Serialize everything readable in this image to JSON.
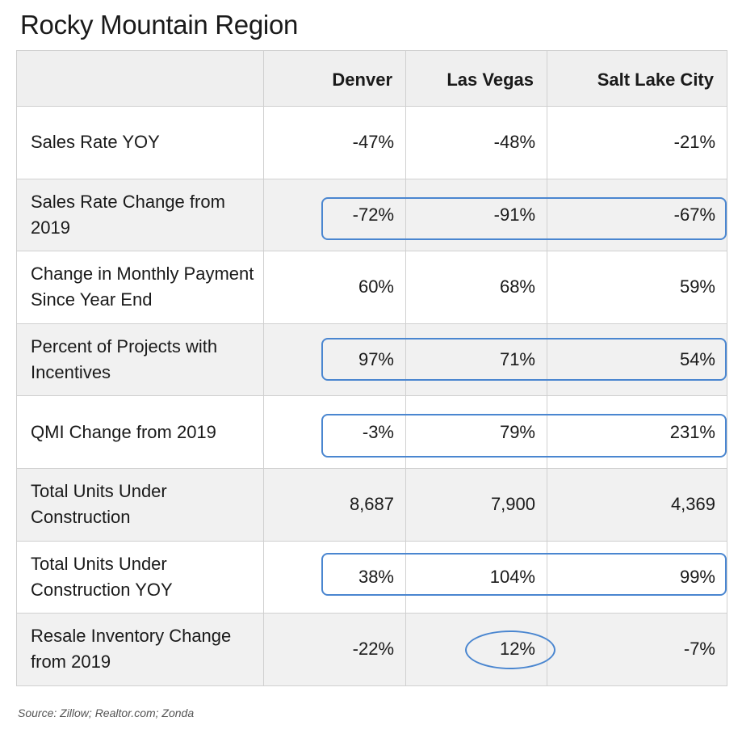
{
  "chart_data": {
    "type": "table",
    "title": "Rocky Mountain Region",
    "columns": [
      "",
      "Denver",
      "Las Vegas",
      "Salt Lake City"
    ],
    "rows": [
      {
        "label": "Sales Rate YOY",
        "values": [
          "-47%",
          "-48%",
          "-21%"
        ],
        "highlight": "none"
      },
      {
        "label": "Sales Rate Change from 2019",
        "values": [
          "-72%",
          "-91%",
          "-67%"
        ],
        "highlight": "row"
      },
      {
        "label": "Change in Monthly Payment Since Year End",
        "values": [
          "60%",
          "68%",
          "59%"
        ],
        "highlight": "none"
      },
      {
        "label": "Percent of Projects with Incentives",
        "values": [
          "97%",
          "71%",
          "54%"
        ],
        "highlight": "row"
      },
      {
        "label": "QMI Change from 2019",
        "values": [
          "-3%",
          "79%",
          "231%"
        ],
        "highlight": "row"
      },
      {
        "label": "Total Units Under Construction",
        "values": [
          "8,687",
          "7,900",
          "4,369"
        ],
        "highlight": "none"
      },
      {
        "label": "Total Units Under Construction YOY",
        "values": [
          "38%",
          "104%",
          "99%"
        ],
        "highlight": "row"
      },
      {
        "label": "Resale Inventory Change from 2019",
        "values": [
          "-22%",
          "12%",
          "-7%"
        ],
        "highlight": "cell-las-vegas"
      }
    ],
    "highlight_color": "#4a86d0",
    "source": "Source: Zillow; Realtor.com; Zonda"
  }
}
